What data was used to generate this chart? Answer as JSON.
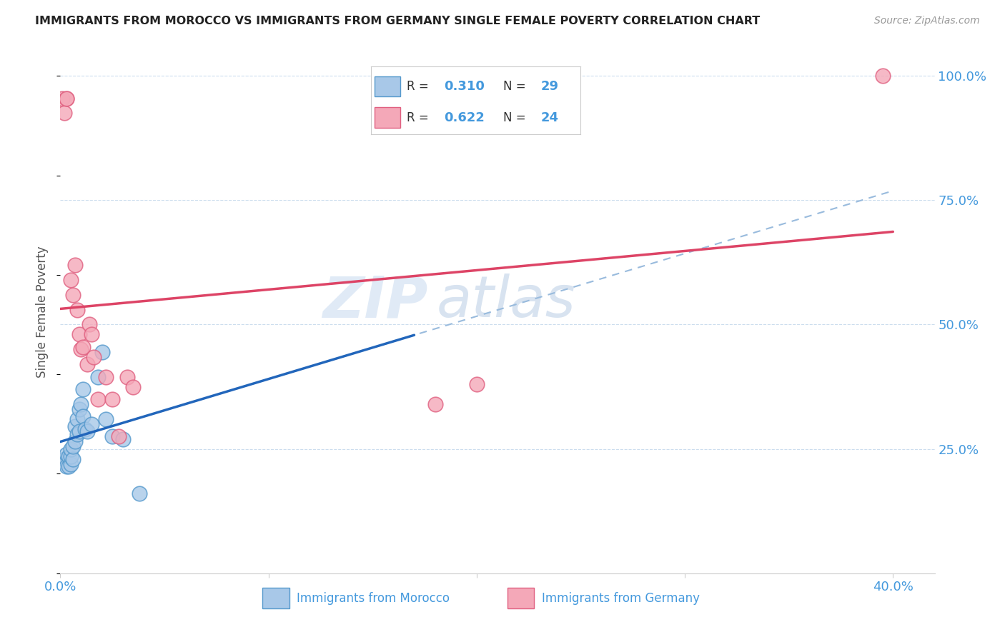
{
  "title": "IMMIGRANTS FROM MOROCCO VS IMMIGRANTS FROM GERMANY SINGLE FEMALE POVERTY CORRELATION CHART",
  "source": "Source: ZipAtlas.com",
  "ylabel": "Single Female Poverty",
  "color_morocco": "#a8c8e8",
  "color_germany": "#f4a8b8",
  "color_morocco_edge": "#5599cc",
  "color_germany_edge": "#e06080",
  "color_trend_morocco": "#2266bb",
  "color_trend_germany": "#dd4466",
  "color_trend_dashed": "#99bbdd",
  "color_axis": "#4499dd",
  "color_grid": "#ccddee",
  "background_color": "#ffffff",
  "watermark_zip": "ZIP",
  "watermark_atlas": "atlas",
  "morocco_x": [
    0.001,
    0.002,
    0.003,
    0.003,
    0.004,
    0.004,
    0.005,
    0.005,
    0.005,
    0.006,
    0.006,
    0.007,
    0.007,
    0.008,
    0.008,
    0.009,
    0.009,
    0.01,
    0.011,
    0.011,
    0.012,
    0.013,
    0.015,
    0.018,
    0.02,
    0.022,
    0.025,
    0.03,
    0.038
  ],
  "morocco_y": [
    0.225,
    0.23,
    0.215,
    0.24,
    0.215,
    0.235,
    0.22,
    0.235,
    0.25,
    0.23,
    0.255,
    0.265,
    0.295,
    0.28,
    0.31,
    0.285,
    0.33,
    0.34,
    0.37,
    0.315,
    0.29,
    0.285,
    0.3,
    0.395,
    0.445,
    0.31,
    0.275,
    0.27,
    0.16
  ],
  "germany_x": [
    0.001,
    0.002,
    0.003,
    0.003,
    0.005,
    0.006,
    0.007,
    0.008,
    0.009,
    0.01,
    0.011,
    0.013,
    0.014,
    0.015,
    0.016,
    0.018,
    0.022,
    0.025,
    0.028,
    0.032,
    0.035,
    0.18,
    0.2,
    0.395
  ],
  "germany_y": [
    0.955,
    0.925,
    0.955,
    0.955,
    0.59,
    0.56,
    0.62,
    0.53,
    0.48,
    0.45,
    0.455,
    0.42,
    0.5,
    0.48,
    0.435,
    0.35,
    0.395,
    0.35,
    0.275,
    0.395,
    0.375,
    0.34,
    0.38,
    1.0
  ],
  "xlim": [
    0.0,
    0.42
  ],
  "ylim": [
    0.0,
    1.05
  ],
  "xticks": [
    0.0,
    0.1,
    0.2,
    0.3,
    0.4
  ],
  "xticklabels": [
    "0.0%",
    "",
    "",
    "",
    "40.0%"
  ],
  "yticks_right": [
    0.25,
    0.5,
    0.75,
    1.0
  ],
  "yticklabels_right": [
    "25.0%",
    "50.0%",
    "75.0%",
    "100.0%"
  ],
  "legend_r1": "R = 0.310",
  "legend_n1": "N = 29",
  "legend_r2": "R = 0.622",
  "legend_n2": "N = 24",
  "bottom_label1": "Immigrants from Morocco",
  "bottom_label2": "Immigrants from Germany"
}
